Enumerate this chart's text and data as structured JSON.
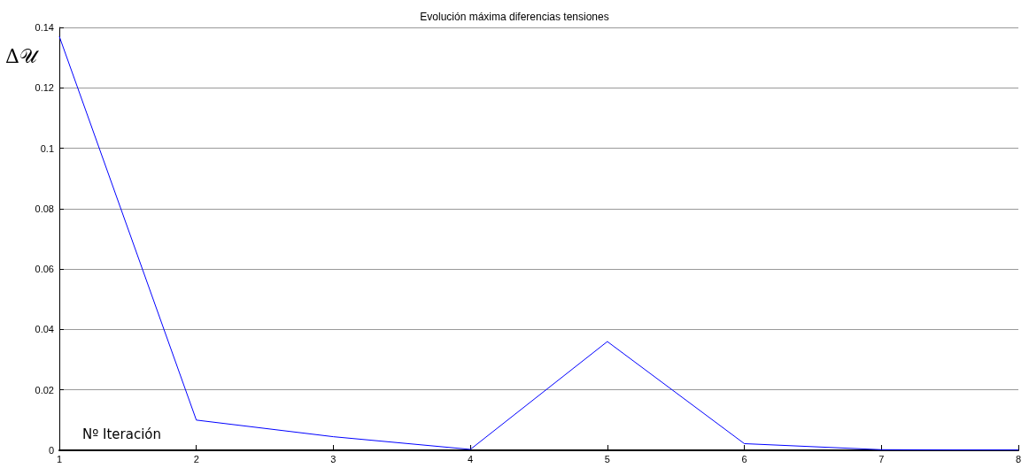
{
  "chart_data": {
    "type": "line",
    "title": "Evolución máxima diferencias tensiones",
    "xlabel": "Nº Iteración",
    "ylabel": "Δ𝒰",
    "x": [
      1,
      2,
      3,
      4,
      5,
      6,
      7,
      8
    ],
    "series": [
      {
        "color": "#0000ff",
        "values": [
          0.137,
          0.01,
          0.0045,
          0.0003,
          0.036,
          0.0022,
          0.0002,
          0.0001
        ]
      }
    ],
    "xlim": [
      1,
      8
    ],
    "xticks": [
      1,
      2,
      3,
      4,
      5,
      6,
      7,
      8
    ],
    "ylim": [
      0,
      0.14
    ],
    "yticks": [
      0,
      0.02,
      0.04,
      0.06,
      0.08,
      0.1,
      0.12,
      0.14
    ],
    "grid": "y",
    "marker": "none",
    "line_style": "solid"
  }
}
